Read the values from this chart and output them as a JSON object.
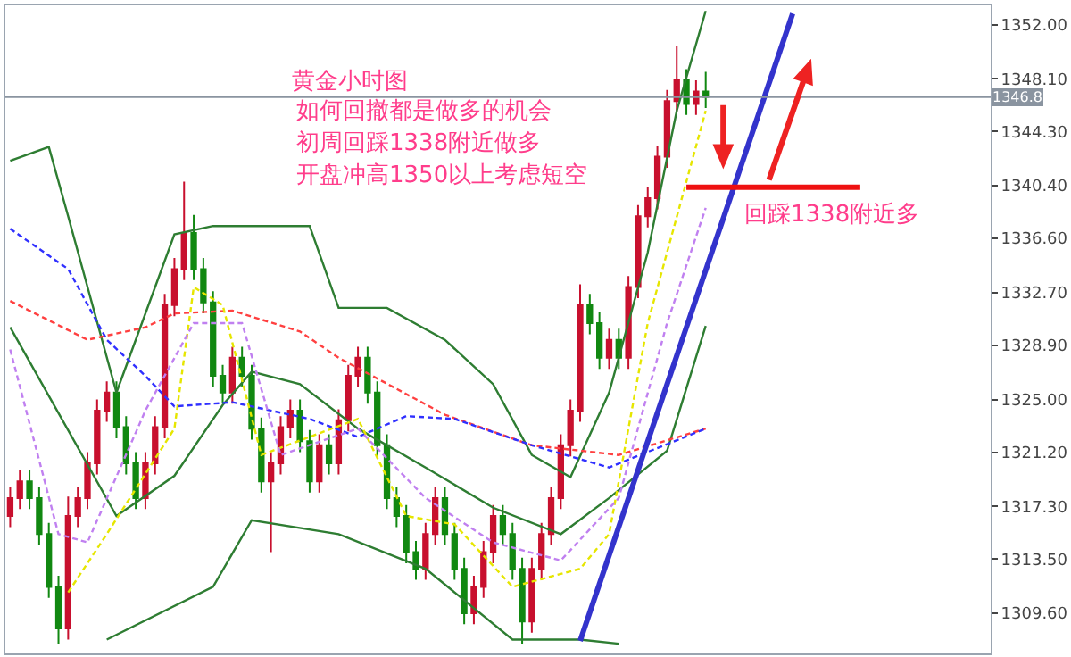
{
  "chart_data": {
    "type": "candlestick",
    "title": "黄金小时图",
    "annotations": [
      "如何回撤都是做多的机会",
      "初周回踩1338附近做多",
      "开盘冲高1350以上考虑短空",
      "回踩1338附近多"
    ],
    "categories": [
      null,
      null,
      null,
      null,
      null,
      null,
      null,
      null,
      null,
      null,
      null,
      null,
      null,
      null,
      null,
      null,
      null,
      null,
      null,
      null,
      null,
      null,
      null,
      null,
      null,
      null,
      null,
      null,
      null,
      null,
      null,
      null,
      null,
      null,
      null,
      null,
      null,
      null,
      null,
      null,
      null,
      null,
      null,
      null,
      null,
      null,
      null,
      null,
      null,
      null,
      null,
      null,
      null,
      null,
      null,
      null,
      null,
      null,
      null,
      null,
      null,
      null,
      null,
      null,
      null,
      null,
      null,
      null,
      null,
      null,
      null,
      null,
      null,
      null,
      null,
      null,
      null,
      null,
      null,
      null,
      null,
      null,
      null,
      null,
      null,
      null,
      null,
      null,
      null,
      null,
      null,
      null,
      null,
      null,
      null,
      null,
      null,
      null,
      null,
      null,
      null,
      null
    ],
    "ohlc": [
      [
        1316.6,
        1318.7,
        1315.8,
        1317.9
      ],
      [
        1317.9,
        1319.9,
        1317.1,
        1319.1
      ],
      [
        1319.1,
        1319.9,
        1317.1,
        1317.9
      ],
      [
        1317.9,
        1318.7,
        1314.5,
        1315.3
      ],
      [
        1315.3,
        1316.1,
        1310.7,
        1311.5
      ],
      [
        1311.5,
        1312.3,
        1307.4,
        1308.5
      ],
      [
        1308.5,
        1318.0,
        1307.7,
        1316.6
      ],
      [
        1316.6,
        1318.7,
        1315.8,
        1317.9
      ],
      [
        1317.9,
        1321.2,
        1317.1,
        1320.4
      ],
      [
        1320.4,
        1325.0,
        1319.6,
        1324.2
      ],
      [
        1324.2,
        1326.3,
        1323.4,
        1325.5
      ],
      [
        1325.5,
        1326.3,
        1322.2,
        1323.0
      ],
      [
        1323.0,
        1323.8,
        1319.6,
        1320.4
      ],
      [
        1320.4,
        1321.2,
        1317.1,
        1317.9
      ],
      [
        1317.9,
        1321.2,
        1317.1,
        1320.4
      ],
      [
        1320.4,
        1323.8,
        1319.6,
        1323.0
      ],
      [
        1323.0,
        1332.6,
        1322.2,
        1331.8
      ],
      [
        1331.8,
        1335.2,
        1331.0,
        1334.4
      ],
      [
        1334.4,
        1340.7,
        1333.6,
        1337.0
      ],
      [
        1337.0,
        1338.3,
        1333.6,
        1334.4
      ],
      [
        1334.4,
        1335.2,
        1331.2,
        1332.0
      ],
      [
        1332.0,
        1332.8,
        1325.9,
        1326.7
      ],
      [
        1326.7,
        1327.5,
        1324.7,
        1325.5
      ],
      [
        1325.5,
        1328.8,
        1324.7,
        1328.0
      ],
      [
        1328.0,
        1328.8,
        1325.9,
        1326.7
      ],
      [
        1326.7,
        1327.5,
        1322.1,
        1322.9
      ],
      [
        1322.9,
        1323.7,
        1318.3,
        1319.1
      ],
      [
        1319.1,
        1321.2,
        1314.0,
        1320.4
      ],
      [
        1320.4,
        1323.8,
        1319.6,
        1323.0
      ],
      [
        1323.0,
        1325.0,
        1322.2,
        1324.2
      ],
      [
        1324.2,
        1325.0,
        1321.2,
        1322.0
      ],
      [
        1322.0,
        1322.8,
        1318.3,
        1319.1
      ],
      [
        1319.1,
        1322.5,
        1318.3,
        1321.7
      ],
      [
        1321.7,
        1322.5,
        1319.6,
        1320.4
      ],
      [
        1320.4,
        1324.3,
        1319.6,
        1323.5
      ],
      [
        1323.5,
        1327.5,
        1322.7,
        1326.7
      ],
      [
        1326.7,
        1328.8,
        1325.9,
        1328.0
      ],
      [
        1328.0,
        1328.8,
        1324.7,
        1325.5
      ],
      [
        1325.5,
        1326.3,
        1320.9,
        1321.7
      ],
      [
        1321.7,
        1322.5,
        1317.1,
        1317.9
      ],
      [
        1317.9,
        1318.7,
        1315.8,
        1316.6
      ],
      [
        1316.6,
        1317.4,
        1313.2,
        1314.0
      ],
      [
        1314.0,
        1314.8,
        1312.0,
        1312.8
      ],
      [
        1312.8,
        1316.1,
        1312.0,
        1315.3
      ],
      [
        1315.3,
        1318.7,
        1314.5,
        1317.9
      ],
      [
        1317.9,
        1318.7,
        1314.5,
        1315.3
      ],
      [
        1315.3,
        1316.1,
        1312.0,
        1312.8
      ],
      [
        1312.8,
        1313.6,
        1308.8,
        1309.6
      ],
      [
        1309.6,
        1312.3,
        1308.8,
        1311.5
      ],
      [
        1311.5,
        1314.8,
        1310.7,
        1314.0
      ],
      [
        1314.0,
        1317.4,
        1313.2,
        1316.6
      ],
      [
        1316.6,
        1317.4,
        1314.5,
        1315.3
      ],
      [
        1315.3,
        1316.1,
        1312.0,
        1312.8
      ],
      [
        1312.8,
        1313.6,
        1307.4,
        1309.0
      ],
      [
        1309.0,
        1313.6,
        1308.2,
        1312.8
      ],
      [
        1312.8,
        1316.1,
        1312.0,
        1315.3
      ],
      [
        1315.3,
        1318.7,
        1314.5,
        1317.9
      ],
      [
        1317.9,
        1322.5,
        1317.1,
        1321.7
      ],
      [
        1321.7,
        1325.0,
        1320.9,
        1324.2
      ],
      [
        1324.2,
        1333.3,
        1323.4,
        1331.8
      ],
      [
        1331.8,
        1332.6,
        1329.7,
        1330.5
      ],
      [
        1330.5,
        1331.3,
        1327.2,
        1328.0
      ],
      [
        1328.0,
        1330.1,
        1327.2,
        1329.3
      ],
      [
        1329.3,
        1330.1,
        1327.2,
        1328.0
      ],
      [
        1328.0,
        1333.9,
        1327.2,
        1333.1
      ],
      [
        1333.1,
        1339.0,
        1332.3,
        1338.2
      ],
      [
        1338.2,
        1340.3,
        1337.4,
        1339.5
      ],
      [
        1339.5,
        1343.3,
        1338.7,
        1342.5
      ],
      [
        1342.5,
        1347.3,
        1341.7,
        1346.5
      ],
      [
        1346.5,
        1350.5,
        1345.7,
        1348.0
      ],
      [
        1348.0,
        1348.8,
        1345.5,
        1346.3
      ],
      [
        1346.3,
        1348.0,
        1345.5,
        1347.2
      ],
      [
        1347.2,
        1348.6,
        1346.0,
        1346.8
      ],
      null,
      null,
      null,
      null,
      null,
      null,
      null,
      null,
      null,
      null,
      null,
      null,
      null,
      null,
      null,
      null,
      null,
      null,
      null,
      null,
      null,
      null,
      null,
      null,
      null,
      null,
      null,
      null,
      null
    ],
    "series": [
      {
        "type": "line",
        "color": "#2e7d32",
        "line_style": "solid",
        "values": [
          1342.2,
          null,
          null,
          null,
          1343.2,
          null,
          1338.2,
          null,
          null,
          null,
          null,
          1325.5,
          null,
          null,
          null,
          null,
          null,
          1336.9,
          null,
          null,
          null,
          1337.5,
          null,
          null,
          null,
          null,
          null,
          null,
          null,
          null,
          null,
          1337.5,
          null,
          null,
          1331.6,
          null,
          null,
          null,
          null,
          1331.6,
          null,
          null,
          null,
          null,
          null,
          1329.3,
          null,
          null,
          null,
          null,
          1326.1,
          null,
          null,
          null,
          1321.0,
          null,
          null,
          null,
          1319.4,
          null,
          null,
          null,
          1325.5,
          null,
          null,
          null,
          1335.6,
          null,
          null,
          1345.8,
          null,
          null,
          1353.0,
          null,
          null,
          null,
          null,
          null,
          null,
          null,
          null,
          null,
          null,
          null,
          null,
          null,
          null,
          null,
          null,
          null,
          null,
          null,
          null,
          null,
          null,
          null,
          null,
          null,
          null,
          null,
          null,
          null
        ]
      },
      {
        "type": "line",
        "color": "#2e7d32",
        "line_style": "solid",
        "values": [
          1330.2,
          null,
          null,
          null,
          null,
          null,
          null,
          null,
          null,
          null,
          null,
          1316.6,
          null,
          null,
          null,
          null,
          null,
          1319.5,
          null,
          null,
          null,
          null,
          1324.6,
          null,
          null,
          1327.0,
          null,
          null,
          null,
          null,
          1326.1,
          null,
          null,
          null,
          null,
          null,
          1322.9,
          null,
          null,
          null,
          null,
          null,
          null,
          1320.1,
          null,
          null,
          null,
          null,
          null,
          null,
          1317.2,
          null,
          null,
          null,
          null,
          null,
          null,
          1315.3,
          null,
          null,
          null,
          null,
          1317.9,
          null,
          null,
          null,
          null,
          null,
          1321.3,
          null,
          null,
          null,
          1330.3,
          null,
          null,
          null,
          null,
          null,
          null,
          null,
          null,
          null,
          null,
          null,
          null,
          null,
          null,
          null,
          null,
          null,
          null,
          null,
          null,
          null,
          null,
          null,
          null,
          null,
          null,
          null,
          null,
          null
        ]
      },
      {
        "type": "line",
        "color": "#2e7d32",
        "line_style": "solid",
        "values": [
          null,
          null,
          null,
          null,
          null,
          null,
          null,
          null,
          null,
          null,
          1307.7,
          null,
          null,
          null,
          null,
          null,
          null,
          null,
          null,
          null,
          null,
          1311.5,
          null,
          null,
          null,
          1316.3,
          null,
          null,
          null,
          null,
          null,
          null,
          null,
          null,
          1315.3,
          null,
          null,
          null,
          null,
          null,
          null,
          null,
          null,
          1312.8,
          null,
          null,
          null,
          null,
          null,
          null,
          null,
          null,
          1307.7,
          null,
          null,
          null,
          null,
          null,
          null,
          1307.7,
          null,
          null,
          null,
          1307.4,
          null,
          null,
          null,
          null,
          null,
          null,
          null,
          null,
          null,
          null,
          null,
          null,
          null,
          null,
          null,
          null,
          null,
          null,
          null,
          null,
          null,
          null,
          null,
          null,
          null,
          null,
          null,
          null,
          null,
          null,
          null,
          null,
          null,
          null,
          null,
          null,
          null,
          null
        ]
      },
      {
        "type": "line",
        "color": "#ff4040",
        "line_style": "dashed",
        "values": [
          1332.1,
          null,
          null,
          null,
          null,
          null,
          null,
          null,
          1329.3,
          null,
          null,
          null,
          null,
          null,
          1330.2,
          null,
          null,
          1331.2,
          null,
          null,
          null,
          null,
          null,
          1331.4,
          null,
          null,
          null,
          null,
          null,
          null,
          1329.9,
          null,
          null,
          null,
          1328.0,
          null,
          null,
          null,
          null,
          null,
          null,
          null,
          null,
          null,
          null,
          1323.9,
          null,
          null,
          null,
          null,
          null,
          null,
          null,
          null,
          1321.7,
          null,
          null,
          null,
          null,
          null,
          null,
          null,
          null,
          1321.0,
          null,
          null,
          null,
          null,
          null,
          null,
          null,
          null,
          1322.9,
          null,
          null,
          null,
          null,
          null,
          null,
          null,
          null,
          null,
          null,
          null,
          null,
          null,
          null,
          null,
          null,
          null,
          null,
          null,
          null,
          null,
          null,
          null,
          null,
          null,
          null,
          null,
          null,
          null
        ]
      },
      {
        "type": "line",
        "color": "#3030ff",
        "line_style": "dashed",
        "values": [
          1337.3,
          null,
          null,
          null,
          null,
          null,
          1334.4,
          null,
          null,
          null,
          1329.3,
          null,
          null,
          null,
          1326.7,
          null,
          null,
          1324.5,
          null,
          null,
          null,
          null,
          null,
          1324.8,
          null,
          null,
          null,
          null,
          null,
          null,
          null,
          1323.6,
          null,
          null,
          null,
          null,
          1322.3,
          null,
          null,
          null,
          null,
          1323.8,
          null,
          null,
          null,
          null,
          1323.6,
          null,
          null,
          null,
          null,
          null,
          null,
          null,
          1321.7,
          null,
          null,
          null,
          null,
          null,
          null,
          null,
          1320.1,
          null,
          null,
          null,
          null,
          null,
          null,
          null,
          null,
          null,
          1322.9,
          null,
          null,
          null,
          null,
          null,
          null,
          null,
          null,
          null,
          null,
          null,
          null,
          null,
          null,
          null,
          null,
          null,
          null,
          null,
          null,
          null,
          null,
          null,
          null,
          null,
          null,
          null,
          null,
          null
        ]
      },
      {
        "type": "line",
        "color": "#e6e600",
        "line_style": "dashed",
        "values": [
          null,
          null,
          null,
          null,
          null,
          null,
          1311.1,
          null,
          null,
          null,
          1315.3,
          null,
          null,
          null,
          null,
          null,
          null,
          1322.9,
          null,
          1333.1,
          null,
          null,
          1331.8,
          null,
          null,
          null,
          1321.0,
          null,
          null,
          null,
          null,
          1322.3,
          null,
          null,
          null,
          null,
          1323.6,
          null,
          null,
          null,
          null,
          1316.6,
          null,
          null,
          null,
          null,
          1316.0,
          null,
          null,
          null,
          null,
          null,
          1311.5,
          null,
          null,
          null,
          null,
          null,
          null,
          1312.8,
          null,
          null,
          1315.3,
          null,
          null,
          null,
          1330.5,
          null,
          null,
          null,
          null,
          null,
          1345.8,
          null,
          null,
          null,
          null,
          null,
          null,
          null,
          null,
          null,
          null,
          null,
          null,
          null,
          null,
          null,
          null,
          null,
          null,
          null,
          null,
          null,
          null,
          null,
          null,
          null,
          null,
          null,
          null,
          null
        ]
      },
      {
        "type": "line",
        "color": "#c080f0",
        "line_style": "dashed",
        "values": [
          1328.6,
          null,
          null,
          null,
          null,
          1315.3,
          null,
          null,
          1314.7,
          null,
          null,
          null,
          null,
          null,
          1324.2,
          null,
          null,
          null,
          null,
          1330.5,
          null,
          null,
          null,
          null,
          1330.5,
          null,
          null,
          null,
          1321.0,
          null,
          null,
          null,
          null,
          null,
          null,
          null,
          1322.9,
          null,
          null,
          null,
          null,
          null,
          null,
          1317.9,
          null,
          null,
          null,
          null,
          null,
          null,
          1314.7,
          null,
          null,
          null,
          null,
          null,
          null,
          1313.4,
          null,
          null,
          null,
          null,
          null,
          1317.9,
          null,
          null,
          null,
          null,
          1330.5,
          null,
          null,
          null,
          1338.8,
          null,
          null,
          null,
          null,
          null,
          null,
          null,
          null,
          null,
          null,
          null,
          null,
          null,
          null,
          null,
          null,
          null,
          null,
          null,
          null,
          null,
          null,
          null,
          null,
          null,
          null,
          null,
          null,
          null
        ]
      },
      {
        "type": "line",
        "color": "#3333cc",
        "line_style": "solid",
        "values": [
          null,
          null,
          null,
          null,
          null,
          null,
          null,
          null,
          null,
          null,
          null,
          null,
          null,
          null,
          null,
          null,
          null,
          null,
          null,
          null,
          null,
          null,
          null,
          null,
          null,
          null,
          null,
          null,
          null,
          null,
          null,
          null,
          null,
          null,
          null,
          null,
          null,
          null,
          null,
          null,
          null,
          null,
          null,
          null,
          null,
          null,
          null,
          null,
          null,
          null,
          null,
          null,
          null,
          null,
          null,
          null,
          null,
          null,
          null,
          1307.6,
          null,
          null,
          null,
          null,
          null,
          null,
          null,
          null,
          null,
          null,
          null,
          null,
          null,
          null,
          null,
          null,
          null,
          null,
          null,
          null,
          null,
          1352.8,
          null,
          null,
          null,
          null,
          null,
          null,
          null,
          null,
          null,
          null,
          null,
          null,
          null,
          null,
          null,
          null,
          null,
          null,
          null,
          null
        ]
      },
      {
        "type": "line",
        "color": "#ee1111",
        "line_style": "solid",
        "values": [
          null,
          null,
          null,
          null,
          null,
          null,
          null,
          null,
          null,
          null,
          null,
          null,
          null,
          null,
          null,
          null,
          null,
          null,
          null,
          null,
          null,
          null,
          null,
          null,
          null,
          null,
          null,
          null,
          null,
          null,
          null,
          null,
          null,
          null,
          null,
          null,
          null,
          null,
          null,
          null,
          null,
          null,
          null,
          null,
          null,
          null,
          null,
          null,
          null,
          null,
          null,
          null,
          null,
          null,
          null,
          null,
          null,
          null,
          null,
          null,
          null,
          null,
          null,
          null,
          null,
          null,
          null,
          null,
          null,
          null,
          1340.3,
          null,
          null,
          null,
          null,
          null,
          null,
          null,
          null,
          null,
          null,
          null,
          null,
          null,
          null,
          null,
          null,
          null,
          1340.3,
          null,
          null,
          null,
          null,
          null,
          null,
          null,
          null,
          null,
          null,
          null,
          null,
          null
        ]
      }
    ],
    "ref_lines": [
      {
        "axis": "y",
        "value": 1346.8,
        "label": "1346.8",
        "color": "#8a94a0"
      }
    ],
    "ylim": [
      1306.7,
      1353.4
    ],
    "yticks": [
      {
        "value": 1352.0,
        "label": "1352.00"
      },
      {
        "value": 1348.1,
        "label": "1348.10"
      },
      {
        "value": 1344.3,
        "label": "1344.30"
      },
      {
        "value": 1340.4,
        "label": "1340.40"
      },
      {
        "value": 1336.6,
        "label": "1336.60"
      },
      {
        "value": 1332.7,
        "label": "1332.70"
      },
      {
        "value": 1328.9,
        "label": "1328.90"
      },
      {
        "value": 1325.0,
        "label": "1325.00"
      },
      {
        "value": 1321.2,
        "label": "1321.20"
      },
      {
        "value": 1317.3,
        "label": "1317.30"
      },
      {
        "value": 1313.5,
        "label": "1313.50"
      },
      {
        "value": 1309.6,
        "label": "1309.60"
      }
    ],
    "tick_labels": "y"
  }
}
